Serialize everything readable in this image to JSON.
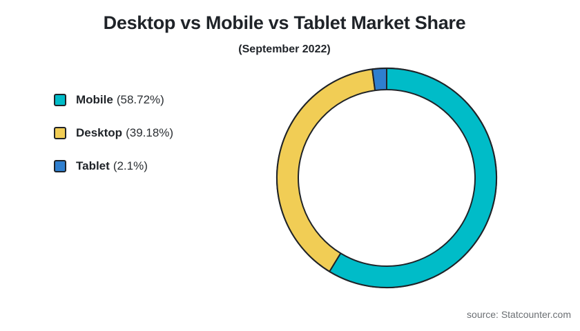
{
  "chart_data": {
    "type": "pie",
    "title": "Desktop vs Mobile vs Tablet Market Share",
    "subtitle": "(September 2022)",
    "categories": [
      "Mobile",
      "Desktop",
      "Tablet"
    ],
    "values": [
      58.72,
      39.18,
      2.1
    ],
    "value_labels": [
      "(58.72%)",
      "(39.18%)",
      "(2.1%)"
    ],
    "colors": [
      "#00bcc8",
      "#f1cd55",
      "#2f7fcf"
    ],
    "legend": "left",
    "donut": true,
    "start": "top",
    "direction": "clockwise",
    "source": "source: Statcounter.com"
  }
}
